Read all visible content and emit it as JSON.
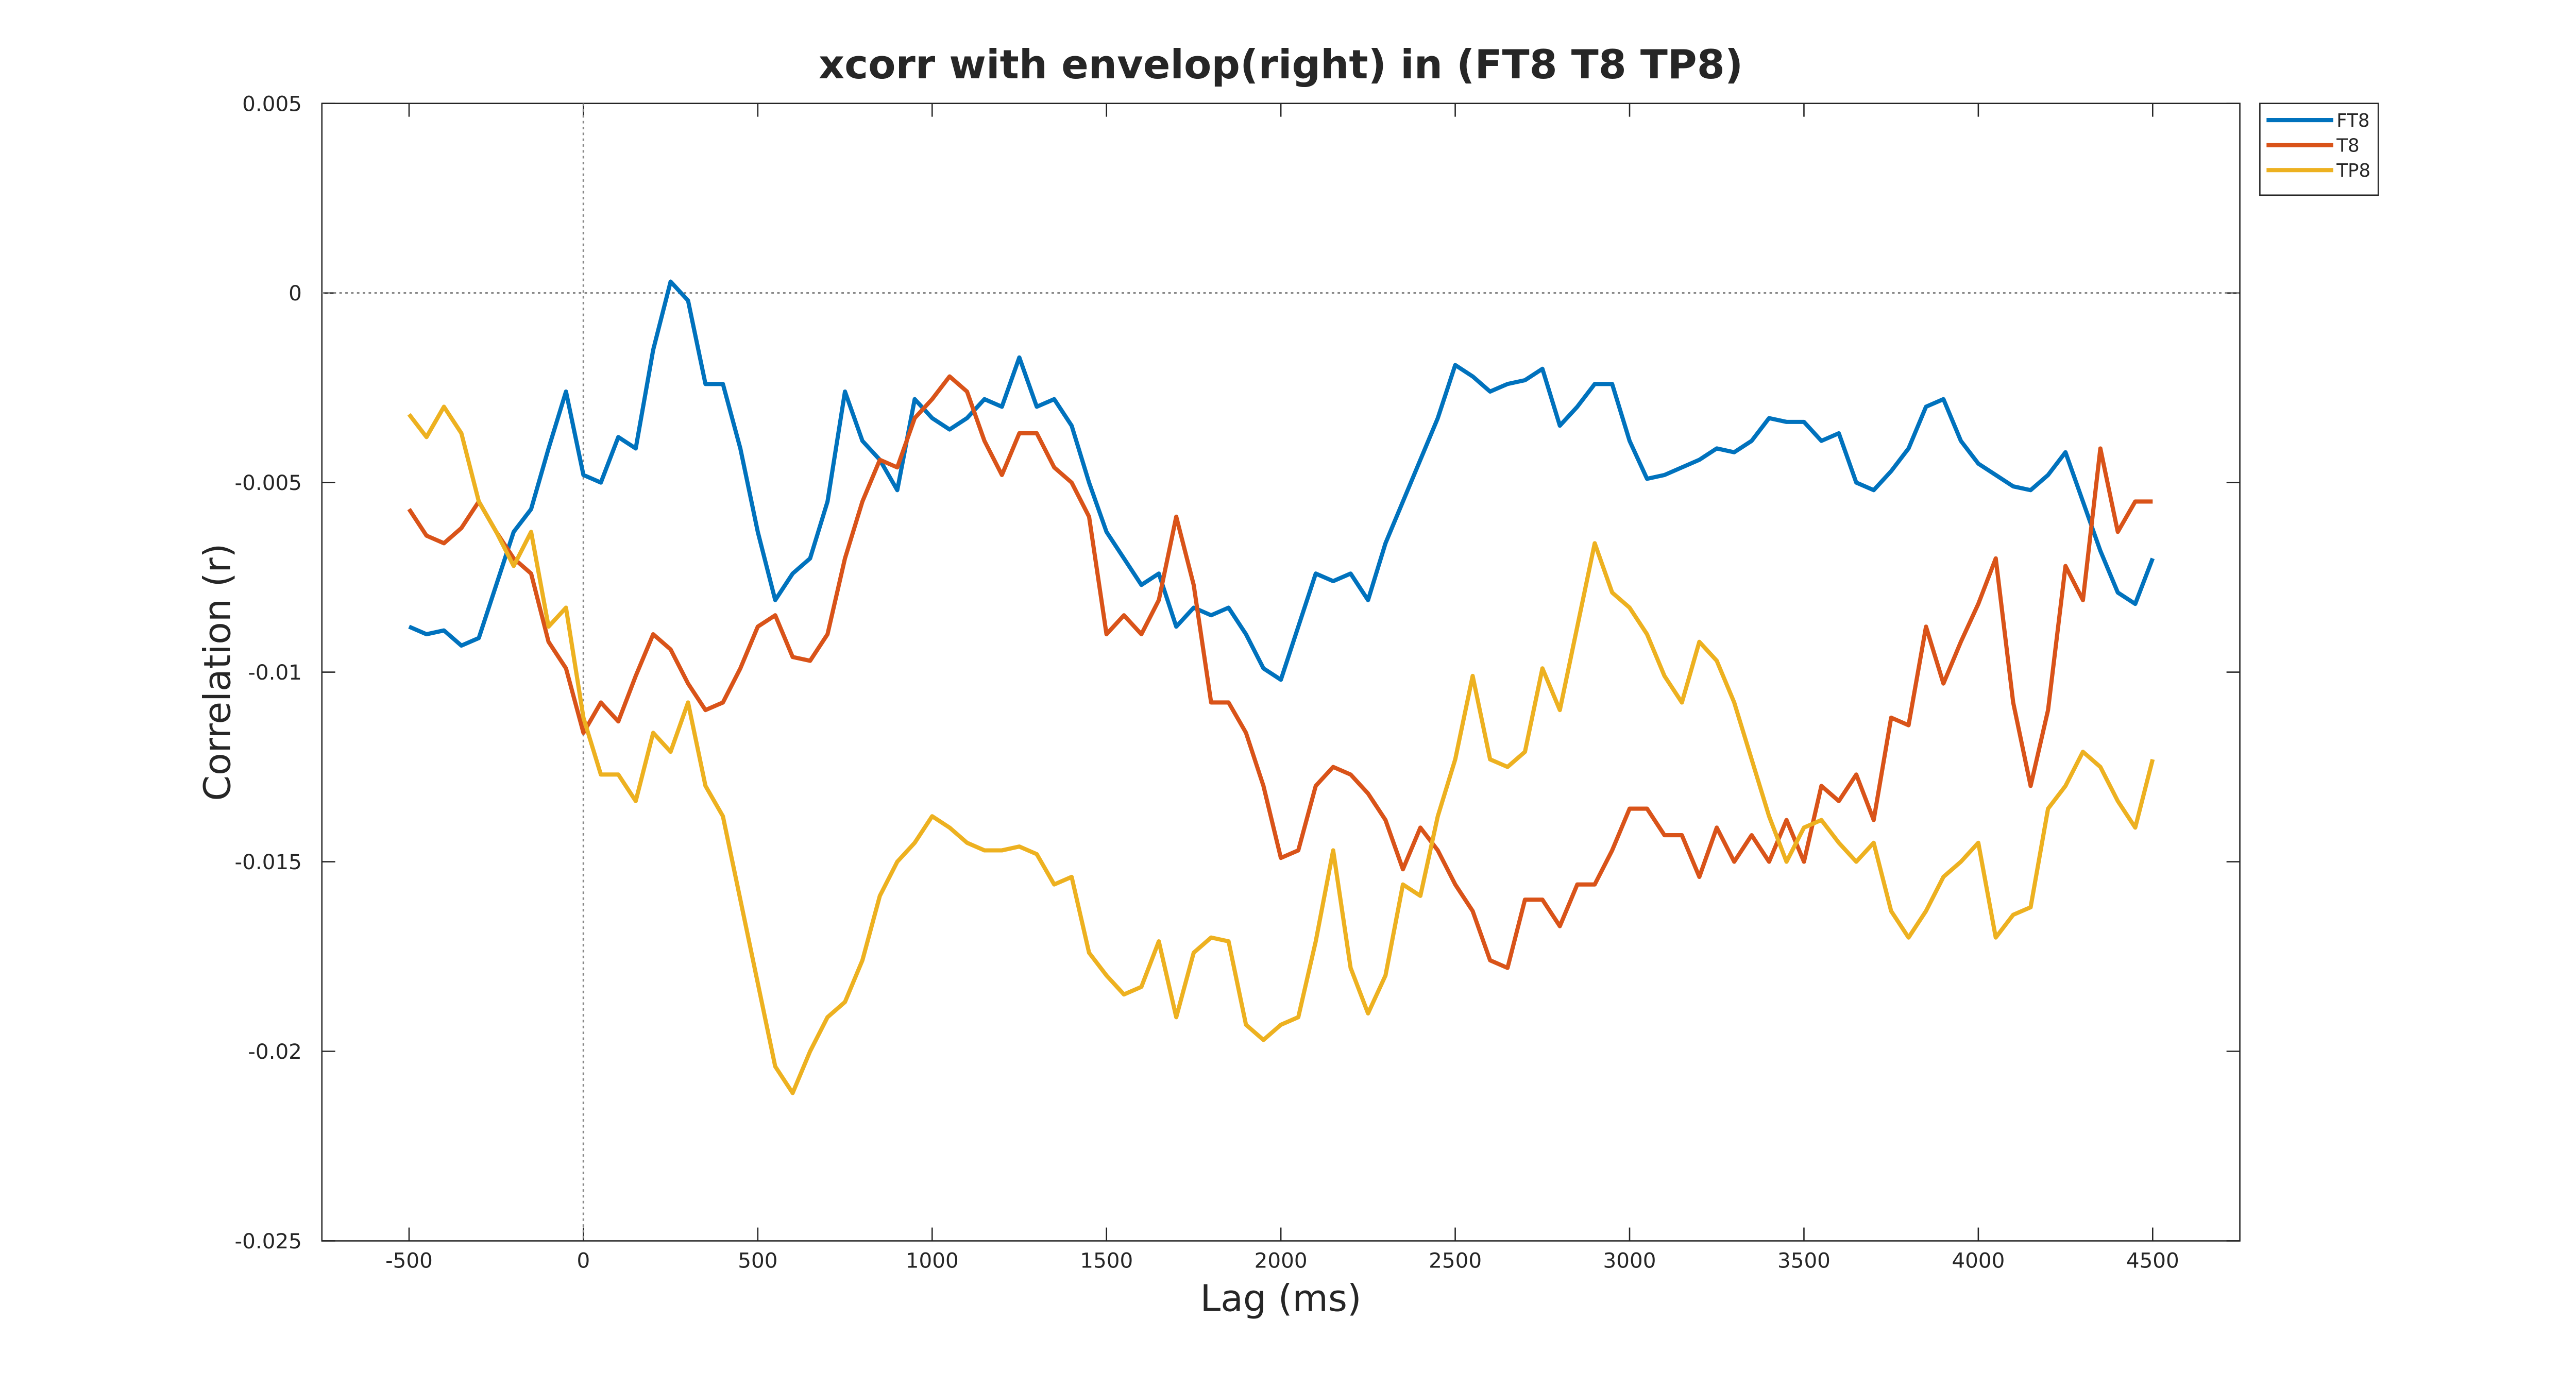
{
  "chart_data": {
    "type": "line",
    "title": "xcorr with envelop(right) in (FT8 T8 TP8)",
    "xlabel": "Lag (ms)",
    "ylabel": "Correlation (r)",
    "x": [
      -500,
      -450,
      -400,
      -350,
      -300,
      -250,
      -200,
      -150,
      -100,
      -50,
      0,
      50,
      100,
      150,
      200,
      250,
      300,
      350,
      400,
      450,
      500,
      550,
      600,
      650,
      700,
      750,
      800,
      850,
      900,
      950,
      1000,
      1050,
      1100,
      1150,
      1200,
      1250,
      1300,
      1350,
      1400,
      1450,
      1500,
      1550,
      1600,
      1650,
      1700,
      1750,
      1800,
      1850,
      1900,
      1950,
      2000,
      2050,
      2100,
      2150,
      2200,
      2250,
      2300,
      2350,
      2400,
      2450,
      2500,
      2550,
      2600,
      2650,
      2700,
      2750,
      2800,
      2850,
      2900,
      2950,
      3000,
      3050,
      3100,
      3150,
      3200,
      3250,
      3300,
      3350,
      3400,
      3450,
      3500,
      3550,
      3600,
      3650,
      3700,
      3750,
      3800,
      3850,
      3900,
      3950,
      4000,
      4050,
      4100,
      4150,
      4200,
      4250,
      4300,
      4350,
      4400,
      4450,
      4500
    ],
    "series": [
      {
        "name": "FT8",
        "color": "#0072BD",
        "values": [
          -0.0088,
          -0.009,
          -0.0089,
          -0.0093,
          -0.0091,
          -0.0077,
          -0.0063,
          -0.0057,
          -0.0041,
          -0.0026,
          -0.0048,
          -0.005,
          -0.0038,
          -0.0041,
          -0.0015,
          0.0003,
          -0.0002,
          -0.0024,
          -0.0024,
          -0.0041,
          -0.0063,
          -0.0081,
          -0.0074,
          -0.007,
          -0.0055,
          -0.0026,
          -0.0039,
          -0.0044,
          -0.0052,
          -0.0028,
          -0.0033,
          -0.0036,
          -0.0033,
          -0.0028,
          -0.003,
          -0.0017,
          -0.003,
          -0.0028,
          -0.0035,
          -0.005,
          -0.0063,
          -0.007,
          -0.0077,
          -0.0074,
          -0.0088,
          -0.0083,
          -0.0085,
          -0.0083,
          -0.009,
          -0.0099,
          -0.0102,
          -0.0088,
          -0.0074,
          -0.0076,
          -0.0074,
          -0.0081,
          -0.0066,
          -0.0055,
          -0.0044,
          -0.0033,
          -0.0019,
          -0.0022,
          -0.0026,
          -0.0024,
          -0.0023,
          -0.002,
          -0.0035,
          -0.003,
          -0.0024,
          -0.0024,
          -0.0039,
          -0.0049,
          -0.0048,
          -0.0046,
          -0.0044,
          -0.0041,
          -0.0042,
          -0.0039,
          -0.0033,
          -0.0034,
          -0.0034,
          -0.0039,
          -0.0037,
          -0.005,
          -0.0052,
          -0.0047,
          -0.0041,
          -0.003,
          -0.0028,
          -0.0039,
          -0.0045,
          -0.0048,
          -0.0051,
          -0.0052,
          -0.0048,
          -0.0042,
          -0.0055,
          -0.0068,
          -0.0079,
          -0.0082,
          -0.007
        ]
      },
      {
        "name": "T8",
        "color": "#D95319",
        "values": [
          -0.0057,
          -0.0064,
          -0.0066,
          -0.0062,
          -0.0055,
          -0.0063,
          -0.007,
          -0.0074,
          -0.0092,
          -0.0099,
          -0.0116,
          -0.0108,
          -0.0113,
          -0.0101,
          -0.009,
          -0.0094,
          -0.0103,
          -0.011,
          -0.0108,
          -0.0099,
          -0.0088,
          -0.0085,
          -0.0096,
          -0.0097,
          -0.009,
          -0.007,
          -0.0055,
          -0.0044,
          -0.0046,
          -0.0033,
          -0.0028,
          -0.0022,
          -0.0026,
          -0.0039,
          -0.0048,
          -0.0037,
          -0.0037,
          -0.0046,
          -0.005,
          -0.0059,
          -0.009,
          -0.0085,
          -0.009,
          -0.0081,
          -0.0059,
          -0.0077,
          -0.0108,
          -0.0108,
          -0.0116,
          -0.013,
          -0.0149,
          -0.0147,
          -0.013,
          -0.0125,
          -0.0127,
          -0.0132,
          -0.0139,
          -0.0152,
          -0.0141,
          -0.0147,
          -0.0156,
          -0.0163,
          -0.0176,
          -0.0178,
          -0.016,
          -0.016,
          -0.0167,
          -0.0156,
          -0.0156,
          -0.0147,
          -0.0136,
          -0.0136,
          -0.0143,
          -0.0143,
          -0.0154,
          -0.0141,
          -0.015,
          -0.0143,
          -0.015,
          -0.0139,
          -0.015,
          -0.013,
          -0.0134,
          -0.0127,
          -0.0139,
          -0.0112,
          -0.0114,
          -0.0088,
          -0.0103,
          -0.0092,
          -0.0082,
          -0.007,
          -0.0108,
          -0.013,
          -0.011,
          -0.0072,
          -0.0081,
          -0.0041,
          -0.0063,
          -0.0055,
          -0.0055
        ]
      },
      {
        "name": "TP8",
        "color": "#EDB120",
        "values": [
          -0.0032,
          -0.0038,
          -0.003,
          -0.0037,
          -0.0055,
          -0.0063,
          -0.0072,
          -0.0063,
          -0.0088,
          -0.0083,
          -0.0112,
          -0.0127,
          -0.0127,
          -0.0134,
          -0.0116,
          -0.0121,
          -0.0108,
          -0.013,
          -0.0138,
          -0.016,
          -0.0182,
          -0.0204,
          -0.0211,
          -0.02,
          -0.0191,
          -0.0187,
          -0.0176,
          -0.0159,
          -0.015,
          -0.0145,
          -0.0138,
          -0.0141,
          -0.0145,
          -0.0147,
          -0.0147,
          -0.0146,
          -0.0148,
          -0.0156,
          -0.0154,
          -0.0174,
          -0.018,
          -0.0185,
          -0.0183,
          -0.0171,
          -0.0191,
          -0.0174,
          -0.017,
          -0.0171,
          -0.0193,
          -0.0197,
          -0.0193,
          -0.0191,
          -0.0171,
          -0.0147,
          -0.0178,
          -0.019,
          -0.018,
          -0.0156,
          -0.0159,
          -0.0138,
          -0.0123,
          -0.0101,
          -0.0123,
          -0.0125,
          -0.0121,
          -0.0099,
          -0.011,
          -0.0088,
          -0.0066,
          -0.0079,
          -0.0083,
          -0.009,
          -0.0101,
          -0.0108,
          -0.0092,
          -0.0097,
          -0.0108,
          -0.0123,
          -0.0138,
          -0.015,
          -0.0141,
          -0.0139,
          -0.0145,
          -0.015,
          -0.0145,
          -0.0163,
          -0.017,
          -0.0163,
          -0.0154,
          -0.015,
          -0.0145,
          -0.017,
          -0.0164,
          -0.0162,
          -0.0136,
          -0.013,
          -0.0121,
          -0.0125,
          -0.0134,
          -0.0141,
          -0.0123
        ]
      }
    ],
    "xlim": [
      -750,
      4750
    ],
    "ylim": [
      -0.025,
      0.005
    ],
    "xticks": [
      -500,
      0,
      500,
      1000,
      1500,
      2000,
      2500,
      3000,
      3500,
      4000,
      4500
    ],
    "yticks": [
      -0.025,
      -0.02,
      -0.015,
      -0.01,
      -0.005,
      0,
      0.005
    ],
    "xline": 0,
    "yline": 0,
    "legend": "outside-top-right"
  }
}
